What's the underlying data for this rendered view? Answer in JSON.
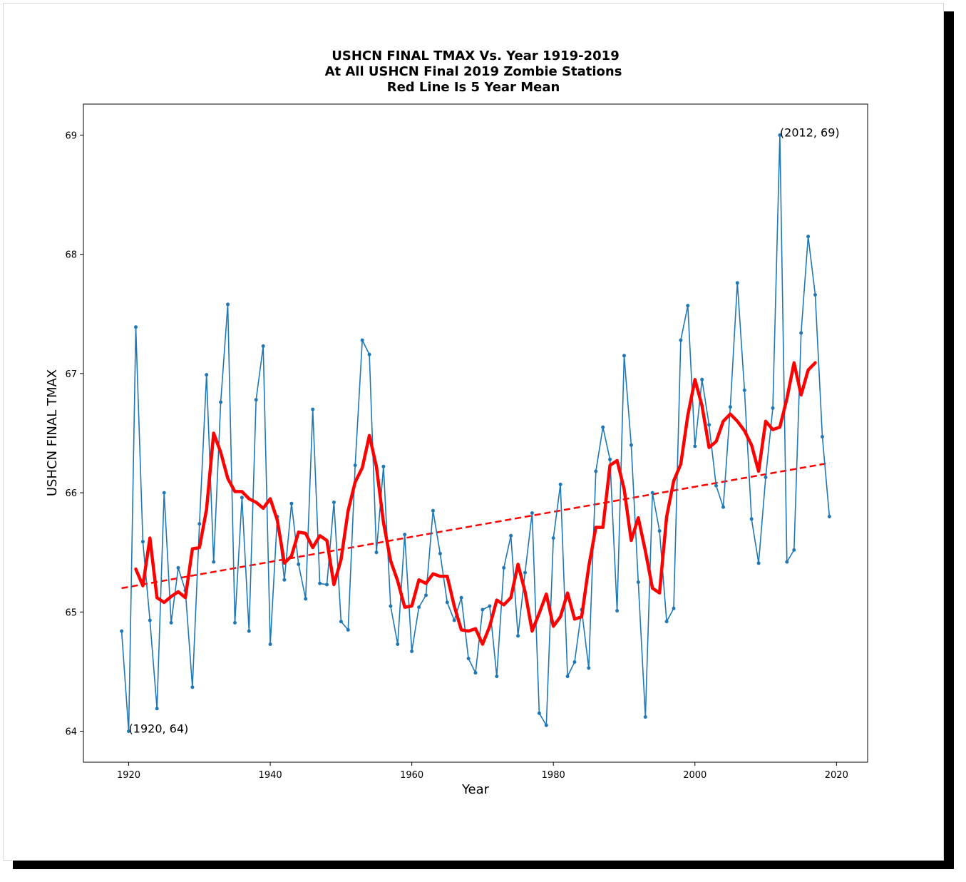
{
  "chart_data": {
    "type": "line",
    "title_lines": [
      "USHCN FINAL TMAX Vs. Year 1919-2019",
      "At All USHCN Final 2019 Zombie Stations",
      "Red Line Is 5 Year Mean"
    ],
    "xlabel": "Year",
    "ylabel": "USHCN FINAL TMAX",
    "xlim": [
      1913.6,
      2024.4
    ],
    "ylim": [
      63.74,
      69.26
    ],
    "xticks": [
      1920,
      1940,
      1960,
      1980,
      2000,
      2020
    ],
    "yticks": [
      64,
      65,
      66,
      67,
      68,
      69
    ],
    "grid": false,
    "colors": {
      "data": "#1f77b4",
      "mean": "#ff0000",
      "trend": "#ff0000"
    },
    "series": [
      {
        "style": "line-with-markers",
        "x": [
          1919,
          1920,
          1921,
          1922,
          1923,
          1924,
          1925,
          1926,
          1927,
          1928,
          1929,
          1930,
          1931,
          1932,
          1933,
          1934,
          1935,
          1936,
          1937,
          1938,
          1939,
          1940,
          1941,
          1942,
          1943,
          1944,
          1945,
          1946,
          1947,
          1948,
          1949,
          1950,
          1951,
          1952,
          1953,
          1954,
          1955,
          1956,
          1957,
          1958,
          1959,
          1960,
          1961,
          1962,
          1963,
          1964,
          1965,
          1966,
          1967,
          1968,
          1969,
          1970,
          1971,
          1972,
          1973,
          1974,
          1975,
          1976,
          1977,
          1978,
          1979,
          1980,
          1981,
          1982,
          1983,
          1984,
          1985,
          1986,
          1987,
          1988,
          1989,
          1990,
          1991,
          1992,
          1993,
          1994,
          1995,
          1996,
          1997,
          1998,
          1999,
          2000,
          2001,
          2002,
          2003,
          2004,
          2005,
          2006,
          2007,
          2008,
          2009,
          2010,
          2011,
          2012,
          2013,
          2014,
          2015,
          2016,
          2017,
          2018,
          2019
        ],
        "y": [
          64.84,
          64.0,
          67.39,
          65.59,
          64.93,
          64.19,
          66.0,
          64.91,
          65.37,
          65.18,
          64.37,
          65.74,
          66.99,
          65.42,
          66.76,
          67.58,
          64.91,
          65.96,
          64.84,
          66.78,
          67.23,
          64.73,
          65.8,
          65.27,
          65.91,
          65.4,
          65.11,
          66.7,
          65.24,
          65.23,
          65.92,
          64.92,
          64.85,
          66.23,
          67.28,
          67.16,
          65.5,
          66.22,
          65.05,
          64.73,
          65.65,
          64.67,
          65.04,
          65.14,
          65.85,
          65.49,
          65.08,
          64.93,
          65.12,
          64.61,
          64.49,
          65.02,
          65.05,
          64.46,
          65.37,
          65.64,
          64.8,
          65.33,
          65.83,
          64.15,
          64.05,
          65.62,
          66.07,
          64.46,
          64.58,
          65.02,
          64.53,
          66.18,
          66.55,
          66.28,
          65.01,
          67.15,
          66.4,
          65.25,
          64.12,
          66.0,
          65.68,
          64.92,
          65.03,
          67.28,
          67.57,
          66.39,
          66.95,
          66.57,
          66.06,
          65.88,
          66.72,
          67.76,
          66.86,
          65.78,
          65.41,
          66.13,
          66.71,
          69.0,
          65.42,
          65.52,
          67.34,
          68.15,
          67.66,
          66.47,
          65.8
        ]
      },
      {
        "style": "thick-line",
        "x": [
          1921,
          1922,
          1923,
          1924,
          1925,
          1926,
          1927,
          1928,
          1929,
          1930,
          1931,
          1932,
          1933,
          1934,
          1935,
          1936,
          1937,
          1938,
          1939,
          1940,
          1941,
          1942,
          1943,
          1944,
          1945,
          1946,
          1947,
          1948,
          1949,
          1950,
          1951,
          1952,
          1953,
          1954,
          1955,
          1956,
          1957,
          1958,
          1959,
          1960,
          1961,
          1962,
          1963,
          1964,
          1965,
          1966,
          1967,
          1968,
          1969,
          1970,
          1971,
          1972,
          1973,
          1974,
          1975,
          1976,
          1977,
          1978,
          1979,
          1980,
          1981,
          1982,
          1983,
          1984,
          1985,
          1986,
          1987,
          1988,
          1989,
          1990,
          1991,
          1992,
          1993,
          1994,
          1995,
          1996,
          1997,
          1998,
          1999,
          2000,
          2001,
          2002,
          2003,
          2004,
          2005,
          2006,
          2007,
          2008,
          2009,
          2010,
          2011,
          2012,
          2013,
          2014,
          2015,
          2016,
          2017
        ],
        "y": [
          65.36,
          65.22,
          65.62,
          65.12,
          65.08,
          65.13,
          65.17,
          65.12,
          65.53,
          65.54,
          65.86,
          66.5,
          66.34,
          66.12,
          66.01,
          66.01,
          65.95,
          65.92,
          65.87,
          65.95,
          65.77,
          65.41,
          65.47,
          65.67,
          65.66,
          65.54,
          65.64,
          65.6,
          65.23,
          65.44,
          65.85,
          66.09,
          66.21,
          66.48,
          66.22,
          65.75,
          65.43,
          65.26,
          65.04,
          65.05,
          65.27,
          65.24,
          65.32,
          65.3,
          65.3,
          65.05,
          64.85,
          64.84,
          64.86,
          64.73,
          64.88,
          65.1,
          65.06,
          65.12,
          65.4,
          65.17,
          64.84,
          64.99,
          65.15,
          64.88,
          64.96,
          65.16,
          64.94,
          64.96,
          65.38,
          65.71,
          65.71,
          66.23,
          66.27,
          66.03,
          65.6,
          65.79,
          65.51,
          65.2,
          65.16,
          65.8,
          66.1,
          66.24,
          66.65,
          66.95,
          66.73,
          66.38,
          66.43,
          66.6,
          66.66,
          66.6,
          66.52,
          66.4,
          66.18,
          66.6,
          66.53,
          66.55,
          66.79,
          67.09,
          66.82,
          67.03,
          67.09
        ]
      },
      {
        "style": "dashed",
        "x": [
          1919,
          2019
        ],
        "y": [
          65.2,
          66.25
        ]
      }
    ],
    "annotations": [
      {
        "text": "(1920, 64)",
        "x": 1920,
        "y": 64.0
      },
      {
        "text": "(2012, 69)",
        "x": 2012,
        "y": 69.0
      }
    ]
  }
}
